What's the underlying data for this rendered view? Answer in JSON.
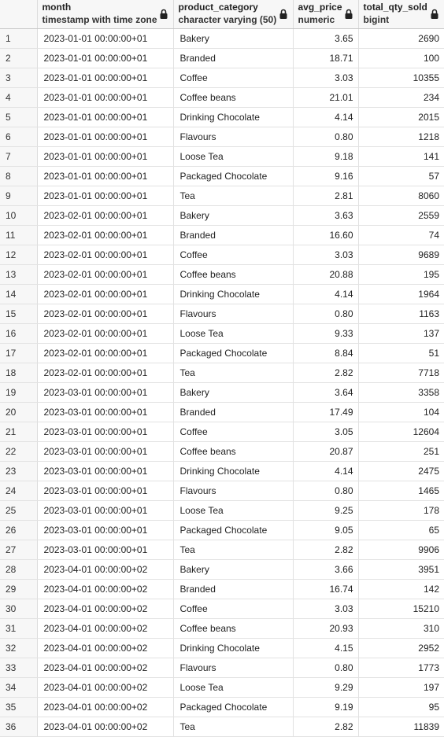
{
  "columns": [
    {
      "name": "",
      "type": ""
    },
    {
      "name": "month",
      "type": "timestamp with time zone"
    },
    {
      "name": "product_category",
      "type": "character varying (50)"
    },
    {
      "name": "avg_price",
      "type": "numeric"
    },
    {
      "name": "total_qty_sold",
      "type": "bigint"
    }
  ],
  "rows": [
    {
      "n": "1",
      "month": "2023-01-01 00:00:00+01",
      "category": "Bakery",
      "avg_price": "3.65",
      "qty": "2690"
    },
    {
      "n": "2",
      "month": "2023-01-01 00:00:00+01",
      "category": "Branded",
      "avg_price": "18.71",
      "qty": "100"
    },
    {
      "n": "3",
      "month": "2023-01-01 00:00:00+01",
      "category": "Coffee",
      "avg_price": "3.03",
      "qty": "10355"
    },
    {
      "n": "4",
      "month": "2023-01-01 00:00:00+01",
      "category": "Coffee beans",
      "avg_price": "21.01",
      "qty": "234"
    },
    {
      "n": "5",
      "month": "2023-01-01 00:00:00+01",
      "category": "Drinking Chocolate",
      "avg_price": "4.14",
      "qty": "2015"
    },
    {
      "n": "6",
      "month": "2023-01-01 00:00:00+01",
      "category": "Flavours",
      "avg_price": "0.80",
      "qty": "1218"
    },
    {
      "n": "7",
      "month": "2023-01-01 00:00:00+01",
      "category": "Loose Tea",
      "avg_price": "9.18",
      "qty": "141"
    },
    {
      "n": "8",
      "month": "2023-01-01 00:00:00+01",
      "category": "Packaged Chocolate",
      "avg_price": "9.16",
      "qty": "57"
    },
    {
      "n": "9",
      "month": "2023-01-01 00:00:00+01",
      "category": "Tea",
      "avg_price": "2.81",
      "qty": "8060"
    },
    {
      "n": "10",
      "month": "2023-02-01 00:00:00+01",
      "category": "Bakery",
      "avg_price": "3.63",
      "qty": "2559"
    },
    {
      "n": "11",
      "month": "2023-02-01 00:00:00+01",
      "category": "Branded",
      "avg_price": "16.60",
      "qty": "74"
    },
    {
      "n": "12",
      "month": "2023-02-01 00:00:00+01",
      "category": "Coffee",
      "avg_price": "3.03",
      "qty": "9689"
    },
    {
      "n": "13",
      "month": "2023-02-01 00:00:00+01",
      "category": "Coffee beans",
      "avg_price": "20.88",
      "qty": "195"
    },
    {
      "n": "14",
      "month": "2023-02-01 00:00:00+01",
      "category": "Drinking Chocolate",
      "avg_price": "4.14",
      "qty": "1964"
    },
    {
      "n": "15",
      "month": "2023-02-01 00:00:00+01",
      "category": "Flavours",
      "avg_price": "0.80",
      "qty": "1163"
    },
    {
      "n": "16",
      "month": "2023-02-01 00:00:00+01",
      "category": "Loose Tea",
      "avg_price": "9.33",
      "qty": "137"
    },
    {
      "n": "17",
      "month": "2023-02-01 00:00:00+01",
      "category": "Packaged Chocolate",
      "avg_price": "8.84",
      "qty": "51"
    },
    {
      "n": "18",
      "month": "2023-02-01 00:00:00+01",
      "category": "Tea",
      "avg_price": "2.82",
      "qty": "7718"
    },
    {
      "n": "19",
      "month": "2023-03-01 00:00:00+01",
      "category": "Bakery",
      "avg_price": "3.64",
      "qty": "3358"
    },
    {
      "n": "20",
      "month": "2023-03-01 00:00:00+01",
      "category": "Branded",
      "avg_price": "17.49",
      "qty": "104"
    },
    {
      "n": "21",
      "month": "2023-03-01 00:00:00+01",
      "category": "Coffee",
      "avg_price": "3.05",
      "qty": "12604"
    },
    {
      "n": "22",
      "month": "2023-03-01 00:00:00+01",
      "category": "Coffee beans",
      "avg_price": "20.87",
      "qty": "251"
    },
    {
      "n": "23",
      "month": "2023-03-01 00:00:00+01",
      "category": "Drinking Chocolate",
      "avg_price": "4.14",
      "qty": "2475"
    },
    {
      "n": "24",
      "month": "2023-03-01 00:00:00+01",
      "category": "Flavours",
      "avg_price": "0.80",
      "qty": "1465"
    },
    {
      "n": "25",
      "month": "2023-03-01 00:00:00+01",
      "category": "Loose Tea",
      "avg_price": "9.25",
      "qty": "178"
    },
    {
      "n": "26",
      "month": "2023-03-01 00:00:00+01",
      "category": "Packaged Chocolate",
      "avg_price": "9.05",
      "qty": "65"
    },
    {
      "n": "27",
      "month": "2023-03-01 00:00:00+01",
      "category": "Tea",
      "avg_price": "2.82",
      "qty": "9906"
    },
    {
      "n": "28",
      "month": "2023-04-01 00:00:00+02",
      "category": "Bakery",
      "avg_price": "3.66",
      "qty": "3951"
    },
    {
      "n": "29",
      "month": "2023-04-01 00:00:00+02",
      "category": "Branded",
      "avg_price": "16.74",
      "qty": "142"
    },
    {
      "n": "30",
      "month": "2023-04-01 00:00:00+02",
      "category": "Coffee",
      "avg_price": "3.03",
      "qty": "15210"
    },
    {
      "n": "31",
      "month": "2023-04-01 00:00:00+02",
      "category": "Coffee beans",
      "avg_price": "20.93",
      "qty": "310"
    },
    {
      "n": "32",
      "month": "2023-04-01 00:00:00+02",
      "category": "Drinking Chocolate",
      "avg_price": "4.15",
      "qty": "2952"
    },
    {
      "n": "33",
      "month": "2023-04-01 00:00:00+02",
      "category": "Flavours",
      "avg_price": "0.80",
      "qty": "1773"
    },
    {
      "n": "34",
      "month": "2023-04-01 00:00:00+02",
      "category": "Loose Tea",
      "avg_price": "9.29",
      "qty": "197"
    },
    {
      "n": "35",
      "month": "2023-04-01 00:00:00+02",
      "category": "Packaged Chocolate",
      "avg_price": "9.19",
      "qty": "95"
    },
    {
      "n": "36",
      "month": "2023-04-01 00:00:00+02",
      "category": "Tea",
      "avg_price": "2.82",
      "qty": "11839"
    }
  ],
  "icons": {
    "lock": "lock-icon"
  }
}
